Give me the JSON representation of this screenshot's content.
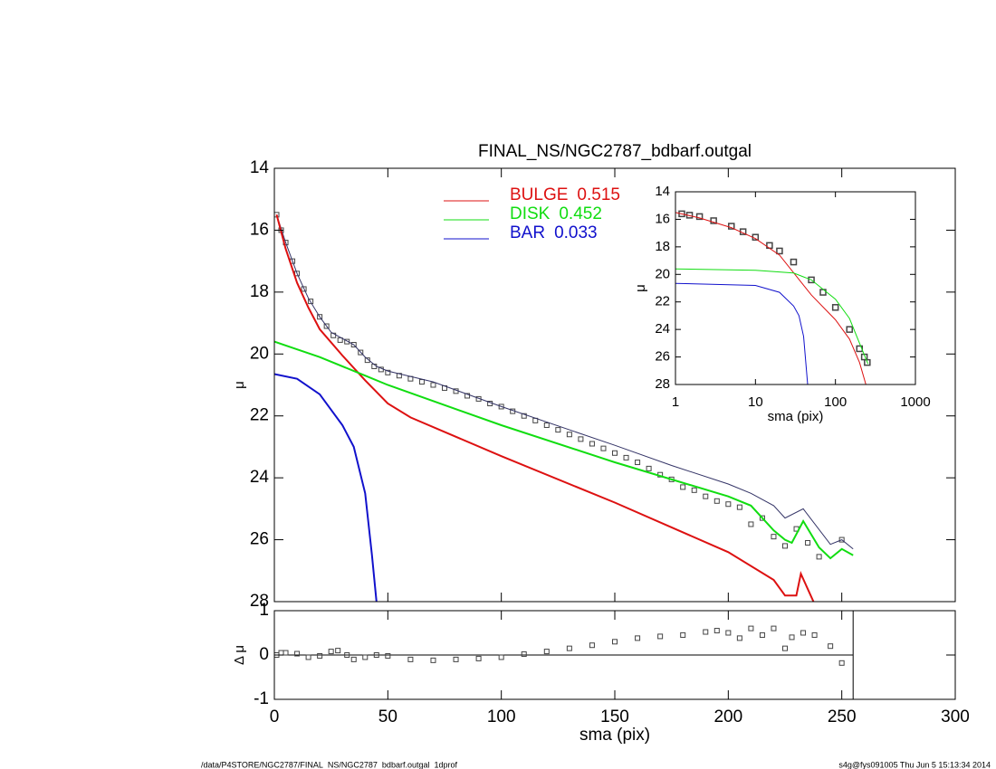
{
  "chart_data": [
    {
      "type": "line",
      "title": "FINAL_NS/NGC2787_bdbarf.outgal",
      "ylabel": "μ",
      "y_inverted": true,
      "xlim": [
        0,
        300
      ],
      "xticks": [
        0,
        50,
        100,
        150,
        200,
        250,
        300
      ],
      "ylim": [
        14,
        28
      ],
      "yticks": [
        14,
        16,
        18,
        20,
        22,
        24,
        26,
        28
      ],
      "legend": "top",
      "series": [
        {
          "style": "points",
          "color": "#444444",
          "x": [
            1,
            3,
            5,
            8,
            10,
            13,
            16,
            20,
            23,
            26,
            29,
            32,
            35,
            38,
            41,
            44,
            47,
            50,
            55,
            60,
            65,
            70,
            75,
            80,
            85,
            90,
            95,
            100,
            105,
            110,
            115,
            120,
            125,
            130,
            135,
            140,
            145,
            150,
            155,
            160,
            165,
            170,
            175,
            180,
            185,
            190,
            195,
            200,
            205,
            210,
            215,
            220,
            225,
            230,
            235,
            240,
            250
          ],
          "values": [
            15.5,
            16.0,
            16.4,
            17.0,
            17.4,
            17.9,
            18.3,
            18.8,
            19.1,
            19.4,
            19.55,
            19.6,
            19.7,
            19.95,
            20.2,
            20.4,
            20.5,
            20.6,
            20.7,
            20.8,
            20.9,
            21.0,
            21.1,
            21.2,
            21.35,
            21.45,
            21.6,
            21.7,
            21.85,
            22.0,
            22.15,
            22.3,
            22.45,
            22.6,
            22.75,
            22.9,
            23.05,
            23.2,
            23.35,
            23.5,
            23.7,
            23.9,
            24.05,
            24.3,
            24.4,
            24.6,
            24.75,
            24.85,
            24.95,
            25.5,
            25.3,
            25.9,
            26.2,
            25.65,
            26.1,
            26.55,
            26.0
          ]
        },
        {
          "style": "line",
          "color": "#333366",
          "width": 1,
          "x": [
            1,
            5,
            10,
            15,
            20,
            25,
            30,
            35,
            40,
            45,
            50,
            70,
            100,
            150,
            175,
            200,
            210,
            220,
            225,
            233,
            245,
            250,
            255
          ],
          "values": [
            15.5,
            16.4,
            17.4,
            18.2,
            18.8,
            19.3,
            19.5,
            19.7,
            20.1,
            20.4,
            20.55,
            20.9,
            21.7,
            22.95,
            23.6,
            24.2,
            24.5,
            24.9,
            25.3,
            25.0,
            26.15,
            26.0,
            26.3
          ]
        },
        {
          "name": "BULGE",
          "fraction": 0.515,
          "style": "line",
          "color": "#dd1111",
          "width": 2,
          "x": [
            1,
            5,
            10,
            15,
            20,
            30,
            40,
            50,
            60,
            100,
            150,
            175,
            200,
            220,
            225,
            230,
            232,
            240
          ],
          "values": [
            15.5,
            16.6,
            17.7,
            18.5,
            19.2,
            20.05,
            20.85,
            21.6,
            22.05,
            23.3,
            24.8,
            25.6,
            26.4,
            27.3,
            27.8,
            27.8,
            27.1,
            28.4
          ]
        },
        {
          "name": "DISK",
          "fraction": 0.452,
          "style": "line",
          "color": "#11dd11",
          "width": 2,
          "x": [
            0,
            20,
            40,
            50,
            100,
            150,
            200,
            210,
            220,
            225,
            228,
            233,
            240,
            245,
            250,
            255
          ],
          "values": [
            19.6,
            20.1,
            20.7,
            21.0,
            22.3,
            23.5,
            24.6,
            24.9,
            25.7,
            26.0,
            26.1,
            25.4,
            26.25,
            26.6,
            26.3,
            26.5
          ]
        },
        {
          "name": "BAR",
          "fraction": 0.033,
          "style": "line",
          "color": "#1111cc",
          "width": 2,
          "x": [
            0,
            10,
            20,
            30,
            35,
            40,
            43,
            45
          ],
          "values": [
            20.65,
            20.8,
            21.3,
            22.3,
            23.0,
            24.5,
            26.5,
            28.0
          ]
        }
      ]
    },
    {
      "type": "scatter",
      "xlabel": "sma (pix)",
      "ylabel": "Δ μ",
      "xlim": [
        0,
        300
      ],
      "xticks": [
        0,
        50,
        100,
        150,
        200,
        250,
        300
      ],
      "ylim": [
        -1,
        1
      ],
      "yticks": [
        -1,
        0,
        1
      ],
      "reference_line": 0,
      "vline": 255,
      "series": [
        {
          "style": "points",
          "color": "#444444",
          "x": [
            1,
            3,
            5,
            10,
            15,
            20,
            25,
            28,
            32,
            35,
            40,
            45,
            50,
            60,
            70,
            80,
            90,
            100,
            110,
            120,
            130,
            140,
            150,
            160,
            170,
            180,
            190,
            195,
            200,
            205,
            210,
            215,
            220,
            225,
            228,
            233,
            238,
            245,
            250
          ],
          "values": [
            0,
            0.05,
            0.05,
            0.03,
            -0.05,
            -0.02,
            0.08,
            0.1,
            0,
            -0.1,
            -0.05,
            0,
            -0.02,
            -0.1,
            -0.12,
            -0.1,
            -0.08,
            -0.05,
            0.02,
            0.08,
            0.15,
            0.22,
            0.3,
            0.38,
            0.42,
            0.45,
            0.52,
            0.55,
            0.5,
            0.38,
            0.6,
            0.45,
            0.6,
            0.15,
            0.4,
            0.5,
            0.45,
            0.2,
            -0.18
          ]
        }
      ]
    },
    {
      "type": "line",
      "xlabel": "sma (pix)",
      "ylabel": "μ",
      "y_inverted": true,
      "xlog": true,
      "xlim": [
        1,
        1000
      ],
      "xticks": [
        1,
        10,
        100,
        1000
      ],
      "ylim": [
        14,
        28
      ],
      "yticks": [
        14,
        16,
        18,
        20,
        22,
        24,
        26,
        28
      ],
      "series": [
        {
          "style": "points",
          "color": "#444444",
          "x": [
            1.2,
            1.5,
            2,
            3,
            5,
            7,
            10,
            15,
            20,
            30,
            50,
            70,
            100,
            150,
            200,
            230,
            250
          ],
          "values": [
            15.6,
            15.7,
            15.8,
            16.1,
            16.5,
            16.9,
            17.3,
            17.9,
            18.3,
            19.1,
            20.4,
            21.3,
            22.4,
            24,
            25.4,
            26,
            26.4
          ]
        },
        {
          "style": "line",
          "color": "#dd1111",
          "width": 1,
          "x": [
            1,
            2,
            5,
            10,
            20,
            50,
            100,
            150,
            200,
            240
          ],
          "values": [
            15.5,
            15.9,
            16.6,
            17.4,
            18.6,
            21.5,
            23.3,
            24.7,
            26.4,
            28
          ]
        },
        {
          "style": "line",
          "color": "#11dd11",
          "width": 1,
          "x": [
            1,
            10,
            30,
            50,
            100,
            150,
            200,
            255
          ],
          "values": [
            19.6,
            19.7,
            19.9,
            20.4,
            21.8,
            23.2,
            25,
            26.5
          ]
        },
        {
          "style": "line",
          "color": "#1111cc",
          "width": 1,
          "x": [
            1,
            10,
            20,
            30,
            35,
            40,
            45
          ],
          "values": [
            20.65,
            20.8,
            21.3,
            22.3,
            23,
            24.5,
            28
          ]
        }
      ]
    }
  ],
  "footer": {
    "left": "/data/P4STORE/NGC2787/FINAL_NS/NGC2787_bdbarf.outgal_1dprof",
    "right": "s4g@fys091005  Thu Jun  5 15:13:34 2014"
  }
}
